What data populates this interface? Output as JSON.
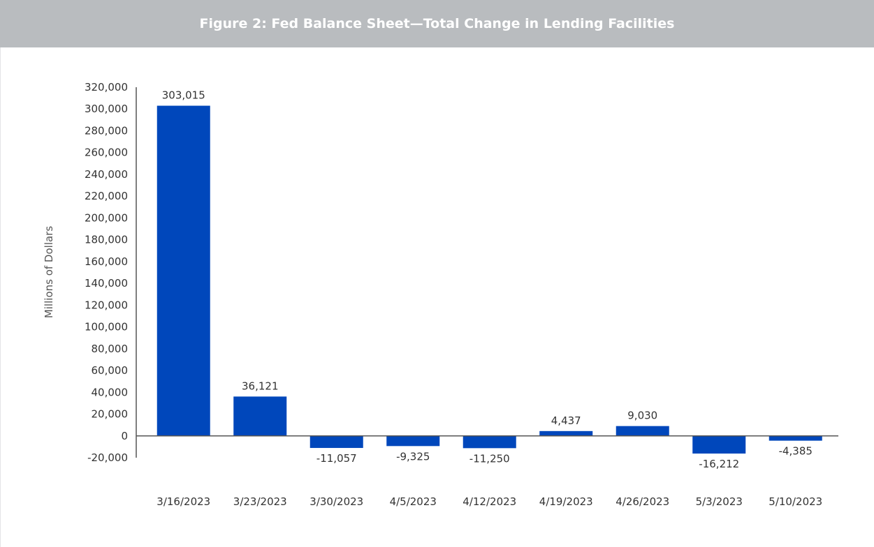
{
  "header": {
    "title": "Figure 2: Fed Balance Sheet—Total Change in Lending Facilities"
  },
  "chart_data": {
    "type": "bar",
    "title": "Figure 2: Fed Balance Sheet—Total Change in Lending Facilities",
    "xlabel": "",
    "ylabel": "Millions of Dollars",
    "categories": [
      "3/16/2023",
      "3/23/2023",
      "3/30/2023",
      "4/5/2023",
      "4/12/2023",
      "4/19/2023",
      "4/26/2023",
      "5/3/2023",
      "5/10/2023"
    ],
    "values": [
      303015,
      36121,
      -11057,
      -9325,
      -11250,
      4437,
      9030,
      -16212,
      -4385
    ],
    "value_labels": [
      "303,015",
      "36,121",
      "-11,057",
      "-9,325",
      "-11,250",
      "4,437",
      "9,030",
      "-16,212",
      "-4,385"
    ],
    "ylim": [
      -20000,
      320000
    ],
    "yticks": [
      -20000,
      0,
      20000,
      40000,
      60000,
      80000,
      100000,
      120000,
      140000,
      160000,
      180000,
      200000,
      220000,
      240000,
      260000,
      280000,
      300000,
      320000
    ],
    "ytick_labels": [
      "-20,000",
      "0",
      "20,000",
      "40,000",
      "60,000",
      "80,000",
      "100,000",
      "120,000",
      "140,000",
      "160,000",
      "180,000",
      "200,000",
      "220,000",
      "240,000",
      "260,000",
      "280,000",
      "300,000",
      "320,000"
    ],
    "grid": false,
    "colors": {
      "bar": "#0047bb",
      "axis": "#555555"
    }
  }
}
